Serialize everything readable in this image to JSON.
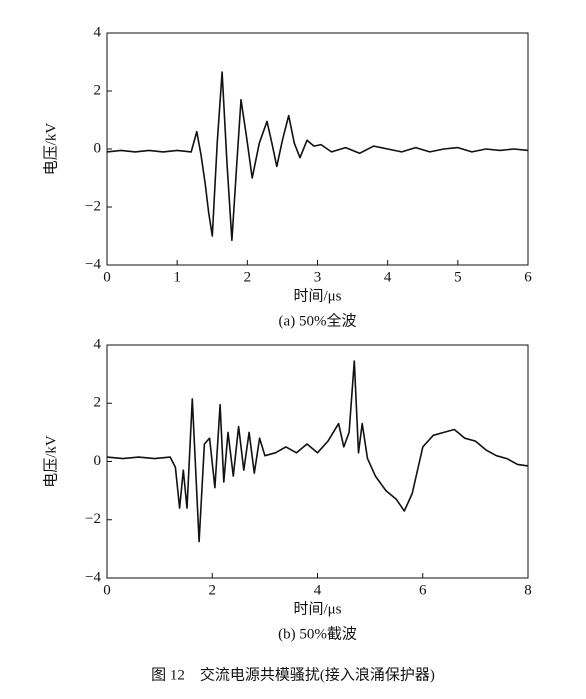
{
  "chart_data": [
    {
      "type": "line",
      "caption": "(a) 50%全波",
      "xlabel": "时间/μs",
      "ylabel": "电压/kV",
      "color": "#111111",
      "xlim": [
        0,
        6
      ],
      "xticks": [
        0,
        1,
        2,
        3,
        4,
        5,
        6
      ],
      "ylim": [
        -4,
        4
      ],
      "yticks": [
        {
          "value": -4,
          "label": "−4"
        },
        {
          "value": -2,
          "label": "−2"
        },
        0,
        2,
        4
      ],
      "x": [
        0,
        0.2,
        0.4,
        0.6,
        0.8,
        1.0,
        1.2,
        1.28,
        1.34,
        1.4,
        1.45,
        1.5,
        1.57,
        1.64,
        1.71,
        1.78,
        1.85,
        1.91,
        1.99,
        2.07,
        2.17,
        2.28,
        2.35,
        2.42,
        2.5,
        2.59,
        2.67,
        2.75,
        2.85,
        2.95,
        3.05,
        3.2,
        3.4,
        3.6,
        3.8,
        4.0,
        4.2,
        4.4,
        4.6,
        4.8,
        5.0,
        5.2,
        5.4,
        5.6,
        5.8,
        6.0
      ],
      "values": [
        -0.1,
        -0.05,
        -0.1,
        -0.05,
        -0.1,
        -0.05,
        -0.1,
        0.6,
        -0.2,
        -1.2,
        -2.2,
        -3.0,
        0.2,
        2.65,
        -0.5,
        -3.15,
        -0.5,
        1.7,
        0.4,
        -1.0,
        0.2,
        0.95,
        0.2,
        -0.6,
        0.3,
        1.15,
        0.2,
        -0.3,
        0.3,
        0.1,
        0.15,
        -0.1,
        0.05,
        -0.15,
        0.1,
        0,
        -0.1,
        0.05,
        -0.1,
        0,
        0.05,
        -0.1,
        0,
        -0.05,
        0,
        -0.05
      ]
    },
    {
      "type": "line",
      "caption": "(b) 50%截波",
      "xlabel": "时间/μs",
      "ylabel": "电压/kV",
      "color": "#111111",
      "xlim": [
        0,
        8
      ],
      "xticks": [
        0,
        2,
        4,
        6,
        8
      ],
      "ylim": [
        -4,
        4
      ],
      "yticks": [
        {
          "value": -4,
          "label": "−4"
        },
        {
          "value": -2,
          "label": "−2"
        },
        0,
        2,
        4
      ],
      "x": [
        0,
        0.3,
        0.6,
        0.9,
        1.2,
        1.3,
        1.38,
        1.45,
        1.52,
        1.62,
        1.75,
        1.85,
        1.95,
        2.05,
        2.15,
        2.22,
        2.3,
        2.4,
        2.5,
        2.6,
        2.7,
        2.8,
        2.9,
        3.0,
        3.2,
        3.4,
        3.6,
        3.8,
        4.0,
        4.2,
        4.4,
        4.5,
        4.6,
        4.7,
        4.78,
        4.85,
        4.95,
        5.1,
        5.3,
        5.5,
        5.65,
        5.8,
        6.0,
        6.2,
        6.4,
        6.6,
        6.8,
        7.0,
        7.2,
        7.4,
        7.6,
        7.8,
        8.0
      ],
      "values": [
        0.15,
        0.1,
        0.15,
        0.1,
        0.15,
        -0.2,
        -1.6,
        -0.3,
        -1.6,
        2.15,
        -2.75,
        0.6,
        0.8,
        -0.9,
        1.95,
        -0.7,
        1.0,
        -0.5,
        1.2,
        -0.3,
        1.0,
        -0.4,
        0.8,
        0.2,
        0.3,
        0.5,
        0.3,
        0.6,
        0.3,
        0.7,
        1.3,
        0.5,
        1.0,
        3.45,
        0.3,
        1.3,
        0.1,
        -0.5,
        -1.0,
        -1.3,
        -1.7,
        -1.1,
        0.5,
        0.9,
        1.0,
        1.1,
        0.8,
        0.7,
        0.4,
        0.2,
        0.1,
        -0.1,
        -0.15
      ]
    }
  ],
  "figure_caption": "图 12　交流电源共模骚扰(接入浪涌保护器)"
}
